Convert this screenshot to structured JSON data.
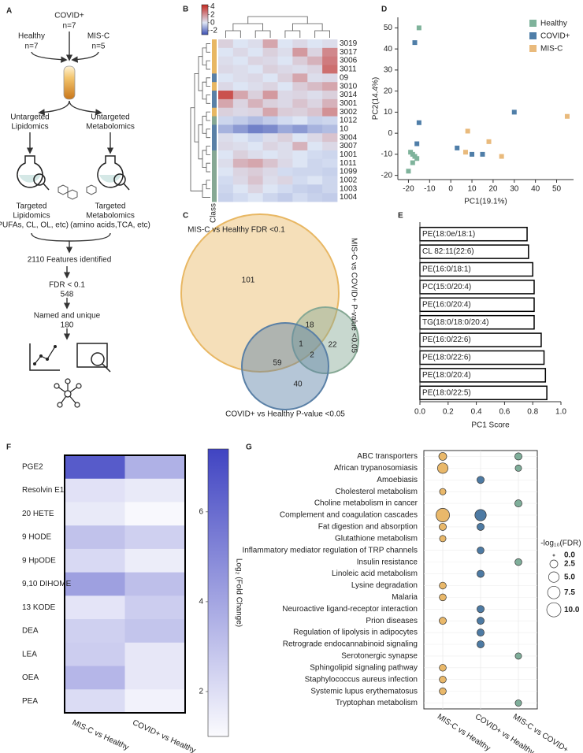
{
  "panel_labels": [
    "A",
    "B",
    "C",
    "D",
    "E",
    "F",
    "G"
  ],
  "panel_a": {
    "covid": "COVID+",
    "covid_n": "n=7",
    "healthy": "Healthy",
    "healthy_n": "n=7",
    "misc": "MIS-C",
    "misc_n": "n=5",
    "untargeted_lipidomics": [
      "Untargeted",
      "Lipidomics"
    ],
    "untargeted_metabolomics": [
      "Untargeted",
      "Metabolomics"
    ],
    "targeted_lipidomics": [
      "Targeted",
      "Lipidomics",
      "(PUFAs, CL, OL, etc)"
    ],
    "targeted_metabolomics": [
      "Targeted",
      "Metabolomics",
      "(amino acids,TCA, etc)"
    ],
    "features": "2110 Features identified",
    "fdr": [
      "FDR < 0.1",
      "548"
    ],
    "named": [
      "Named and unique",
      "180"
    ]
  },
  "panel_c": {
    "sets": [
      {
        "name": "MIS-C vs Healthy FDR <0.1",
        "color": "#e8b763"
      },
      {
        "name": "MIS-C vs COVID+ P-value <0.05",
        "color": "#86a894"
      },
      {
        "name": "COVID+ vs Healthy P-value <0.05",
        "color": "#5a80a6"
      }
    ],
    "regions": {
      "misc_healthy": 101,
      "misc_healthy_and_misc_covid": 18,
      "misc_covid": 22,
      "all_three": 1,
      "misc_covid_and_covid_healthy": 2,
      "misc_healthy_and_covid_healthy": 59,
      "covid_healthy": 40
    }
  },
  "chart_data": [
    {
      "type": "heatmap",
      "rows": [
        "3019",
        "3017",
        "3006",
        "3011",
        "09",
        "3010",
        "3014",
        "3001",
        "3002",
        "1012",
        "10",
        "3004",
        "3007",
        "1001",
        "1011",
        "1099",
        "1002",
        "1003",
        "1004"
      ],
      "values": [
        [
          0.5,
          0,
          0.2,
          1.5,
          0,
          0.3,
          0,
          0.2
        ],
        [
          0,
          0.3,
          0,
          0.5,
          0.2,
          1.8,
          0.4,
          2.2
        ],
        [
          0.2,
          0,
          0.4,
          0.3,
          0,
          0.6,
          1.2,
          2.5
        ],
        [
          0.3,
          0.2,
          0,
          0.5,
          0.3,
          0.2,
          0.4,
          2.8
        ],
        [
          0,
          0.2,
          0.3,
          0,
          0.5,
          1.5,
          0.2,
          0.3
        ],
        [
          0.3,
          0,
          0.2,
          0.4,
          0,
          0.6,
          1.0,
          1.5
        ],
        [
          3.5,
          1.5,
          0.5,
          1.8,
          0.3,
          0.4,
          0.2,
          0.5
        ],
        [
          1.5,
          0.4,
          1.2,
          0.5,
          0.3,
          0.8,
          0.4,
          1.2
        ],
        [
          0.5,
          0.3,
          0.4,
          1.5,
          0.6,
          0.5,
          0.8,
          2.0
        ],
        [
          -0.3,
          -0.5,
          -0.8,
          -0.5,
          -0.2,
          0,
          -0.4,
          -0.3
        ],
        [
          -1.0,
          -1.5,
          -2.0,
          -1.8,
          -1.2,
          -1.5,
          -1.0,
          -0.8
        ],
        [
          0.2,
          0,
          -0.3,
          0.2,
          0.5,
          0,
          0.3,
          0.8
        ],
        [
          0.3,
          0.2,
          0,
          0.4,
          0.2,
          1.2,
          0,
          0.3
        ],
        [
          0,
          0.5,
          0.2,
          0,
          0.2,
          0,
          -0.2,
          -0.3
        ],
        [
          0.2,
          1.2,
          1.5,
          0.8,
          0.3,
          0,
          -0.3,
          -0.2
        ],
        [
          0,
          0.4,
          0.6,
          0.3,
          -0.2,
          -0.3,
          -0.3,
          -0.4
        ],
        [
          -0.2,
          0.3,
          0.8,
          0.2,
          0.4,
          -0.2,
          0,
          -0.3
        ],
        [
          -0.3,
          0,
          0.4,
          0,
          -0.2,
          -0.4,
          -0.5,
          -0.3
        ],
        [
          -0.4,
          -0.2,
          0,
          -0.3,
          -0.5,
          -0.2,
          -0.4,
          -0.5
        ]
      ],
      "row_colors": [
        "#e8b763",
        "#e8b763",
        "#e8b763",
        "#e8b763",
        "#5a80a6",
        "#e8b763",
        "#5a80a6",
        "#5a80a6",
        "#e8b763",
        "#86a894",
        "#5a80a6",
        "#5a80a6",
        "#5a80a6",
        "#86a894",
        "#86a894",
        "#86a894",
        "#86a894",
        "#86a894",
        "#86a894"
      ],
      "class_label": "Class",
      "clim": [
        -3,
        4.5
      ],
      "colorscale": [
        {
          "value": -3,
          "color": "#3b4fb2"
        },
        {
          "value": 0,
          "color": "#dde5f4"
        },
        {
          "value": 4.5,
          "color": "#c4271f"
        }
      ],
      "colorbar_ticks": [
        4,
        2,
        0,
        -2
      ]
    },
    {
      "type": "scatter",
      "xlabel": "PC1(19.1%)",
      "ylabel": "PC2(14.4%)",
      "xlim": [
        -25,
        58
      ],
      "ylim": [
        -22,
        55
      ],
      "xticks": [
        -20,
        -10,
        0,
        10,
        20,
        30,
        40,
        50
      ],
      "yticks": [
        -20,
        -10,
        0,
        10,
        20,
        30,
        40,
        50
      ],
      "legend": "upper right",
      "series": [
        {
          "name": "Healthy",
          "color": "#7fb39b",
          "x": [
            -15,
            -20,
            -19,
            -18,
            -17,
            -16,
            -18
          ],
          "y": [
            50,
            -18,
            -9,
            -10,
            -11,
            -12,
            -14
          ]
        },
        {
          "name": "COVID+",
          "color": "#4f7ea8",
          "x": [
            -17,
            -15,
            -16,
            3,
            10,
            15,
            30
          ],
          "y": [
            43,
            5,
            -5,
            -7,
            -10,
            -10,
            10
          ]
        },
        {
          "name": "MIS-C",
          "color": "#e9ba7c",
          "x": [
            8,
            7,
            18,
            24,
            55
          ],
          "y": [
            1,
            -9,
            -4,
            -11,
            8
          ]
        }
      ]
    },
    {
      "type": "bar",
      "orientation": "horizontal",
      "categories": [
        "PE(18:0e/18:1)",
        "CL 82:11(22:6)",
        "PE(16:0/18:1)",
        "PC(15:0/20:4)",
        "PE(16:0/20:4)",
        "TG(18:0/18:0/20:4)",
        "PE(16:0/22:6)",
        "PE(18:0/22:6)",
        "PE(18:0/20:4)",
        "PE(18:0/22:5)"
      ],
      "values": [
        0.76,
        0.77,
        0.8,
        0.81,
        0.81,
        0.81,
        0.86,
        0.88,
        0.89,
        0.9
      ],
      "xlim": [
        0,
        1.0
      ],
      "xticks": [
        {
          "value": 0,
          "label": "0.0"
        },
        0.2,
        0.4,
        0.6,
        0.8,
        {
          "value": 1.0,
          "label": "1.0"
        }
      ],
      "xlabel": "PC1 Score",
      "color": "#ffffff",
      "edgecolor": "#000000"
    },
    {
      "type": "heatmap",
      "rows": [
        "PGE2",
        "Resolvin E1",
        "20 HETE",
        "9 HODE",
        "9 HpODE",
        "9,10 DIHOME",
        "13 KODE",
        "DEA",
        "LEA",
        "OEA",
        "PEA"
      ],
      "columns": [
        "MIS-C vs Healthy",
        "COVID+ vs Healthy"
      ],
      "values": [
        [
          6.6,
          3.6
        ],
        [
          1.9,
          1.6
        ],
        [
          1.6,
          1.1
        ],
        [
          3.0,
          2.5
        ],
        [
          2.2,
          1.5
        ],
        [
          4.2,
          3.1
        ],
        [
          1.8,
          2.6
        ],
        [
          2.5,
          2.9
        ],
        [
          2.6,
          1.7
        ],
        [
          3.4,
          1.7
        ],
        [
          2.1,
          1.3
        ]
      ],
      "clim": [
        1,
        7.4
      ],
      "colorscale": [
        {
          "value": 1,
          "color": "#fbfbfe"
        },
        {
          "value": 7.4,
          "color": "#4044c2"
        }
      ],
      "colorbar_ticks": [
        2,
        4,
        6
      ],
      "colorbar_label": "Log₂ (Fold Change)"
    },
    {
      "type": "bubble",
      "categories": [
        "ABC transporters",
        "African trypanosomiasis",
        "Amoebiasis",
        "Cholesterol metabolism",
        "Choline metabolism in cancer",
        "Complement and coagulation cascades",
        "Fat digestion and absorption",
        "Glutathione metabolism",
        "Inflammatory mediator regulation of TRP channels",
        "Insulin resistance",
        "Linoleic acid metabolism",
        "Lysine degradation",
        "Malaria",
        "Neuroactive ligand-receptor interaction",
        "Prion diseases",
        "Regulation of lipolysis in adipocytes",
        "Retrograde endocannabinoid signaling",
        "Serotonergic synapse",
        "Sphingolipid signaling pathway",
        "Staphylococcus aureus infection",
        "Systemic lupus erythematosus",
        "Tryptophan metabolism"
      ],
      "series": [
        {
          "name": "MIS-C vs Healthy",
          "color": "#e9b86a",
          "values": [
            2.5,
            5,
            null,
            1.5,
            null,
            9,
            2,
            1.5,
            null,
            null,
            null,
            1.8,
            1.8,
            null,
            2,
            null,
            null,
            null,
            1.8,
            1.8,
            1.8,
            null
          ]
        },
        {
          "name": "COVID+ vs Healthy",
          "color": "#4d7aa3",
          "values": [
            null,
            null,
            2,
            null,
            null,
            6,
            2,
            null,
            1.8,
            null,
            2,
            null,
            null,
            2,
            2,
            2,
            2,
            null,
            null,
            null,
            null,
            null
          ]
        },
        {
          "name": "MIS-C vs COVID+",
          "color": "#7fae9a",
          "values": [
            2,
            1.5,
            null,
            null,
            2,
            null,
            null,
            null,
            null,
            1.8,
            null,
            null,
            null,
            null,
            null,
            null,
            null,
            1.5,
            null,
            null,
            null,
            1.5
          ]
        }
      ],
      "size_legend": {
        "title": "-log₁₀(FDR)",
        "values": [
          {
            "value": 0,
            "label": "0.0"
          },
          2.5,
          {
            "value": 5,
            "label": "5.0"
          },
          7.5,
          {
            "value": 10,
            "label": "10.0"
          }
        ]
      }
    }
  ]
}
